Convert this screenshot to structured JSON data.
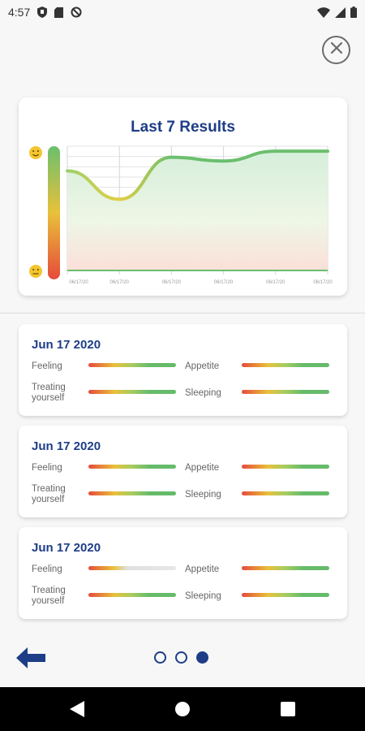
{
  "status_bar": {
    "time": "4:57",
    "left_icons": [
      "shield-icon",
      "sd-card-icon",
      "no-sync-icon"
    ],
    "right_icons": [
      "wifi-icon",
      "signal-icon",
      "battery-icon"
    ]
  },
  "header": {
    "close_icon": "close-icon"
  },
  "chart_card": {
    "title": "Last 7 Results",
    "top_face": "happy-face-icon",
    "bottom_face": "neutral-face-icon"
  },
  "chart_data": {
    "type": "area",
    "title": "Last 7 Results",
    "x": [
      "06/17/20",
      "06/17/20",
      "06/17/20",
      "06/17/20",
      "06/17/20",
      "06/17/20"
    ],
    "values": [
      0.8,
      0.57,
      0.91,
      0.88,
      0.96,
      0.96
    ],
    "ylim": [
      0,
      1
    ],
    "grid": true,
    "colors": {
      "line": "#6bbf6e",
      "fill_top": "#d9f0dd",
      "fill_bottom": "#fbe3dc"
    }
  },
  "results": [
    {
      "date": "Jun 17 2020",
      "metrics": [
        {
          "label": "Feeling",
          "level": 1.0
        },
        {
          "label": "Appetite",
          "level": 1.0
        },
        {
          "label": "Treating yourself",
          "level": 1.0
        },
        {
          "label": "Sleeping",
          "level": 1.0
        }
      ]
    },
    {
      "date": "Jun 17 2020",
      "metrics": [
        {
          "label": "Feeling",
          "level": 1.0
        },
        {
          "label": "Appetite",
          "level": 1.0
        },
        {
          "label": "Treating yourself",
          "level": 1.0
        },
        {
          "label": "Sleeping",
          "level": 1.0
        }
      ]
    },
    {
      "date": "Jun 17 2020",
      "metrics": [
        {
          "label": "Feeling",
          "level": 0.4
        },
        {
          "label": "Appetite",
          "level": 1.0
        },
        {
          "label": "Treating yourself",
          "level": 1.0
        },
        {
          "label": "Sleeping",
          "level": 1.0
        }
      ]
    }
  ],
  "pager": {
    "count": 3,
    "active": 3
  },
  "nav_bar": {
    "buttons": [
      "back-icon",
      "home-icon",
      "recents-icon"
    ]
  },
  "colors": {
    "brand": "#1e3d87",
    "good": "#66bb6a",
    "bad": "#e64a3b",
    "mid": "#e8c13a"
  }
}
